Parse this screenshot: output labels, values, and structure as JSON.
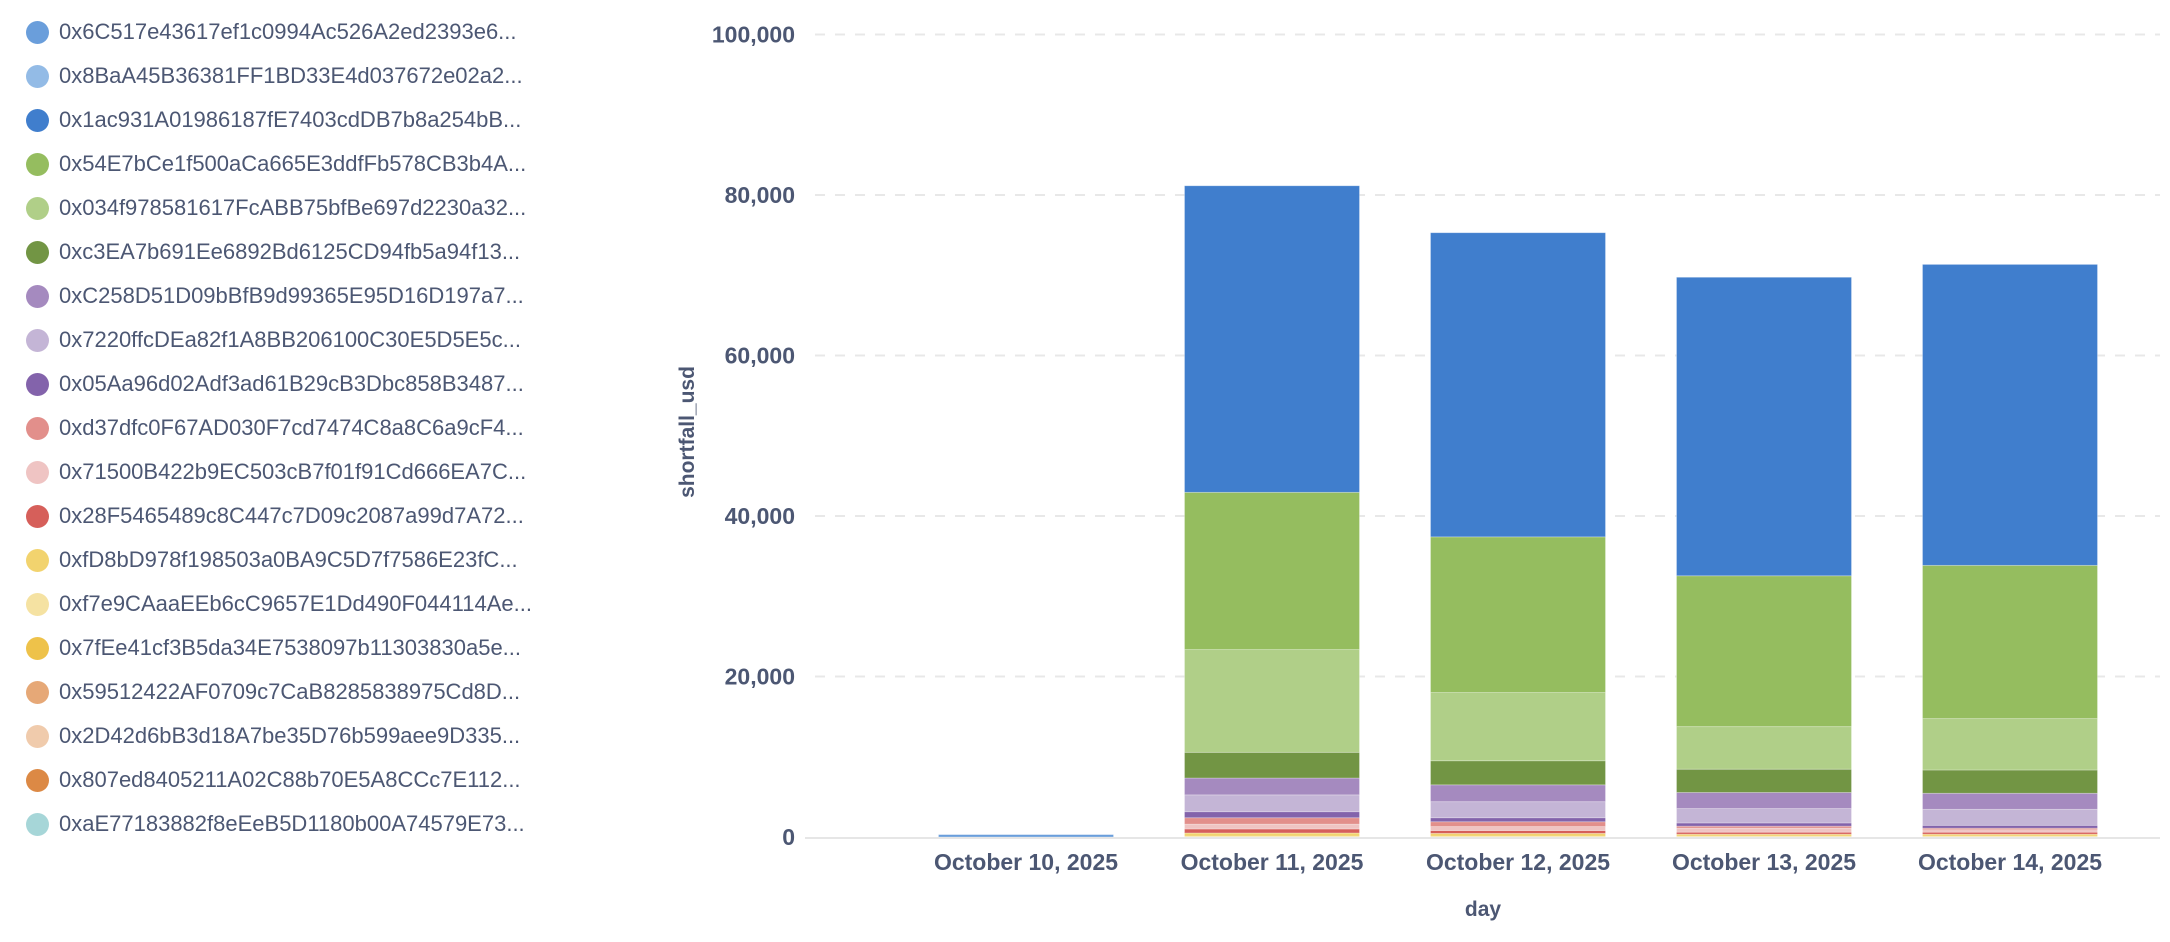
{
  "legend": [
    {
      "label": "0x6C517e43617ef1c0994Ac526A2ed2393e6...",
      "color": "#6a9edb"
    },
    {
      "label": "0x8BaA45B36381FF1BD33E4d037672e02a2...",
      "color": "#93bbe6"
    },
    {
      "label": "0x1ac931A01986187fE7403cdDB7b8a254bB...",
      "color": "#407ecd"
    },
    {
      "label": "0x54E7bCe1f500aCa665E3ddfFb578CB3b4A...",
      "color": "#95bd5f"
    },
    {
      "label": "0x034f978581617FcABB75bfBe697d2230a32...",
      "color": "#b0cf88"
    },
    {
      "label": "0xc3EA7b691Ee6892Bd6125CD94fb5a94f13...",
      "color": "#729544"
    },
    {
      "label": "0xC258D51D09bBfB9d99365E95D16D197a7...",
      "color": "#a58abf"
    },
    {
      "label": "0x7220ffcDEa82f1A8BB206100C30E5D5E5c...",
      "color": "#c4b5d6"
    },
    {
      "label": "0x05Aa96d02Adf3ad61B29cB3Dbc858B3487...",
      "color": "#8363ab"
    },
    {
      "label": "0xd37dfc0F67AD030F7cd7474C8a8C6a9cF4...",
      "color": "#e28f8b"
    },
    {
      "label": "0x71500B422b9EC503cB7f01f91Cd666EA7C...",
      "color": "#efc4c3"
    },
    {
      "label": "0x28F5465489c8C447c7D09c2087a99d7A72...",
      "color": "#d65f5a"
    },
    {
      "label": "0xfD8bD978f198503a0BA9C5D7f7586E23fC...",
      "color": "#f2d36e"
    },
    {
      "label": "0xf7e9CAaaEEb6cC9657E1Dd490F044114Ae...",
      "color": "#f5e2a2"
    },
    {
      "label": "0x7fEe41cf3B5da34E7538097b11303830a5e...",
      "color": "#eec24a"
    },
    {
      "label": "0x59512422AF0709c7CaB8285838975Cd8D...",
      "color": "#e6a877"
    },
    {
      "label": "0x2D42d6bB3d18A7be35D76b599aee9D335...",
      "color": "#f0cbac"
    },
    {
      "label": "0x807ed8405211A02C88b70E5A8CCc7E112...",
      "color": "#dc8945"
    },
    {
      "label": "0xaE77183882f8eEeB5D1180b00A74579E73...",
      "color": "#a6d6d8"
    }
  ],
  "chart_data": {
    "type": "bar",
    "stacked": true,
    "xlabel": "day",
    "ylabel": "shortfall_usd",
    "ylim": [
      0,
      100000
    ],
    "yticks": [
      "0",
      "20,000",
      "40,000",
      "60,000",
      "80,000",
      "100,000"
    ],
    "ytick_values": [
      0,
      20000,
      40000,
      60000,
      80000,
      100000
    ],
    "grid": "horizontal dashed",
    "legend_position": "left",
    "categories": [
      "October 10, 2025",
      "October 11, 2025",
      "October 12, 2025",
      "October 13, 2025",
      "October 14, 2025"
    ],
    "series_stack_order_bottom_to_top": [
      12,
      13,
      11,
      10,
      9,
      8,
      7,
      6,
      5,
      4,
      3,
      2,
      0
    ],
    "series": [
      {
        "name": "0x6C517e43617ef1c0994Ac526A2ed2393e6...",
        "values": [
          300,
          0,
          0,
          0,
          0
        ]
      },
      {
        "name": "0x8BaA45B36381FF1BD33E4d037672e02a2...",
        "values": [
          0,
          0,
          0,
          0,
          0
        ]
      },
      {
        "name": "0x1ac931A01986187fE7403cdDB7b8a254bB...",
        "values": [
          0,
          38200,
          37900,
          37200,
          37500
        ]
      },
      {
        "name": "0x54E7bCe1f500aCa665E3ddfFb578CB3b4A...",
        "values": [
          0,
          19600,
          19400,
          18800,
          19100
        ]
      },
      {
        "name": "0x034f978581617FcABB75bfBe697d2230a32...",
        "values": [
          0,
          12800,
          8500,
          5300,
          6400
        ]
      },
      {
        "name": "0xc3EA7b691Ee6892Bd6125CD94fb5a94f13...",
        "values": [
          0,
          3200,
          3000,
          2900,
          2900
        ]
      },
      {
        "name": "0xC258D51D09bBfB9d99365E95D16D197a7...",
        "values": [
          0,
          2100,
          2100,
          2000,
          2000
        ]
      },
      {
        "name": "0x7220ffcDEa82f1A8BB206100C30E5D5E5c...",
        "values": [
          0,
          2100,
          2000,
          1800,
          2000
        ]
      },
      {
        "name": "0x05Aa96d02Adf3ad61B29cB3Dbc858B3487...",
        "values": [
          0,
          750,
          500,
          400,
          350
        ]
      },
      {
        "name": "0xd37dfc0F67AD030F7cd7474C8a8C6a9cF4...",
        "values": [
          0,
          800,
          600,
          250,
          100
        ]
      },
      {
        "name": "0x71500B422b9EC503cB7f01f91Cd666EA7C...",
        "values": [
          0,
          600,
          500,
          500,
          400
        ]
      },
      {
        "name": "0x28F5465489c8C447c7D09c2087a99d7A72...",
        "values": [
          0,
          500,
          350,
          250,
          250
        ]
      },
      {
        "name": "0xfD8bD978f198503a0BA9C5D7f7586E23fC...",
        "values": [
          0,
          400,
          350,
          250,
          250
        ]
      },
      {
        "name": "0xf7e9CAaaEEb6cC9657E1Dd490F044114Ae...",
        "values": [
          0,
          100,
          100,
          100,
          100
        ]
      },
      {
        "name": "0x7fEe41cf3B5da34E7538097b11303830a5e...",
        "values": [
          0,
          0,
          0,
          0,
          0
        ]
      },
      {
        "name": "0x59512422AF0709c7CaB8285838975Cd8D...",
        "values": [
          0,
          0,
          0,
          0,
          0
        ]
      },
      {
        "name": "0x2D42d6bB3d18A7be35D76b599aee9D335...",
        "values": [
          0,
          0,
          0,
          0,
          0
        ]
      },
      {
        "name": "0x807ed8405211A02C88b70E5A8CCc7E112...",
        "values": [
          0,
          0,
          0,
          0,
          0
        ]
      },
      {
        "name": "0xaE77183882f8eEeB5D1180b00A74579E73...",
        "values": [
          0,
          0,
          0,
          0,
          0
        ]
      }
    ]
  }
}
